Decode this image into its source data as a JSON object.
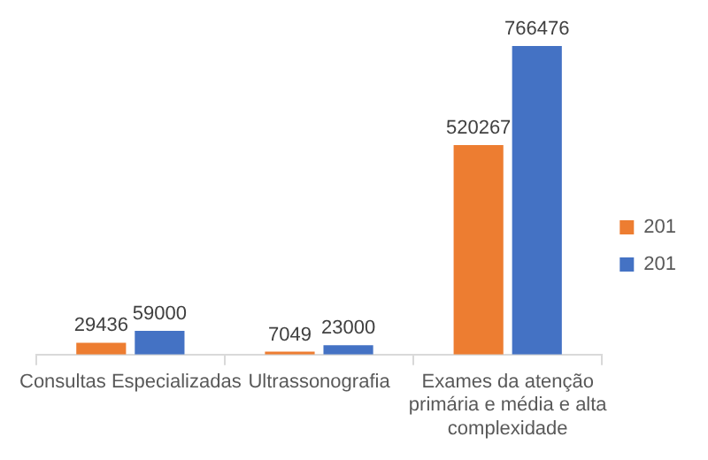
{
  "chart_data": {
    "type": "bar",
    "categories": [
      "Consultas Especializadas",
      "Ultrassonografia",
      "Exames da atenção primária e média e alta complexidade"
    ],
    "series": [
      {
        "name": "201",
        "color": "#ed7d31",
        "values": [
          29436,
          7049,
          520267
        ]
      },
      {
        "name": "201",
        "color": "#4472c4",
        "values": [
          59000,
          23000,
          766476
        ]
      }
    ],
    "data_labels": true,
    "legend": "right",
    "grid": false
  }
}
